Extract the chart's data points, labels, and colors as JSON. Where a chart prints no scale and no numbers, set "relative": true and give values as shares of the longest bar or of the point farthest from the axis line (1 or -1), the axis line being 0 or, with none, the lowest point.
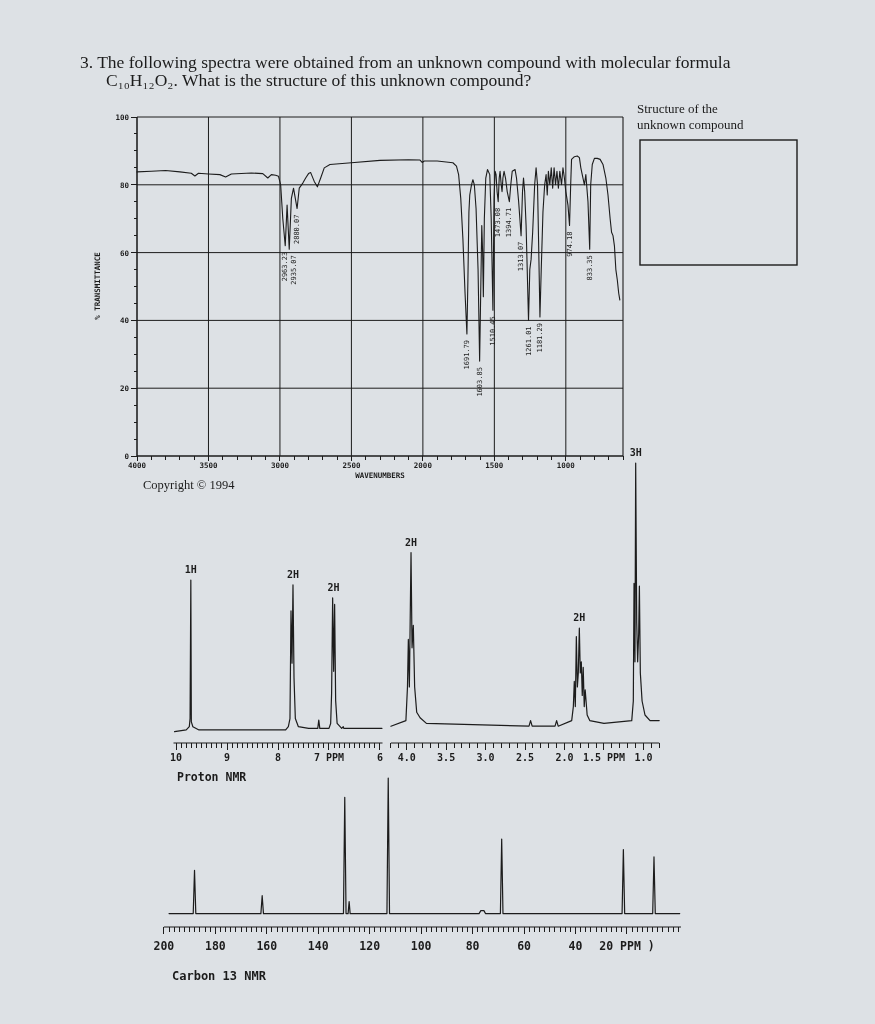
{
  "chart_data": [
    {
      "type": "line",
      "title": "3. The following spectra were obtained from an unknown compound with molecular formula C₁₀H₁₂O₂. What is the structure of this unknown compound?",
      "xlabel": "WAVENUMBERS",
      "ylabel": "% TRANSMITTANCE",
      "x": [
        4000,
        3900,
        3800,
        3700,
        3620,
        3595,
        3570,
        3500,
        3420,
        3380,
        3340,
        3200,
        3120,
        3085,
        3060,
        3030,
        3010,
        2995,
        2980,
        2963,
        2950,
        2935,
        2920,
        2905,
        2880,
        2865,
        2840,
        2820,
        2800,
        2785,
        2760,
        2738,
        2715,
        2690,
        2650,
        2500,
        2300,
        2100,
        2020,
        2005,
        1990,
        1900,
        1790,
        1765,
        1750,
        1735,
        1720,
        1705,
        1692,
        1685,
        1678,
        1672,
        1660,
        1650,
        1640,
        1628,
        1614,
        1603,
        1594,
        1588,
        1582,
        1577,
        1570,
        1560,
        1548,
        1532,
        1522,
        1510,
        1502,
        1495,
        1488,
        1481,
        1473,
        1466,
        1460,
        1452,
        1446,
        1440,
        1432,
        1422,
        1410,
        1395,
        1385,
        1375,
        1355,
        1345,
        1330,
        1313,
        1303,
        1296,
        1288,
        1278,
        1261,
        1252,
        1243,
        1232,
        1218,
        1208,
        1198,
        1190,
        1181,
        1172,
        1160,
        1148,
        1138,
        1130,
        1122,
        1112,
        1102,
        1092,
        1082,
        1072,
        1062,
        1052,
        1042,
        1030,
        1020,
        1010,
        1000,
        985,
        974,
        966,
        960,
        940,
        920,
        905,
        895,
        880,
        870,
        860,
        845,
        833,
        826,
        815,
        800,
        780,
        760,
        740,
        720,
        705,
        690,
        680,
        670,
        660,
        650,
        640,
        630,
        622
      ],
      "series": [
        {
          "color": "#1c1c1c",
          "values": [
            83.8,
            84,
            84.2,
            83.8,
            83.4,
            82.6,
            83.4,
            83.2,
            83,
            82.3,
            83.2,
            83.5,
            83.3,
            82,
            83,
            82.8,
            82.5,
            80,
            70,
            62,
            74,
            61,
            76,
            79,
            73,
            79,
            80.5,
            82,
            83.3,
            83.6,
            81,
            79.4,
            82,
            85,
            86,
            86.5,
            87.2,
            87.4,
            87.3,
            86.6,
            87,
            87,
            86.5,
            85.5,
            83,
            76,
            64,
            48,
            36,
            52,
            72,
            77,
            80,
            81.5,
            80,
            73,
            55,
            28,
            52,
            68,
            60,
            47,
            70,
            82,
            84.5,
            83,
            70,
            43,
            76,
            84,
            83,
            78,
            75,
            82,
            84,
            80,
            78,
            82,
            84,
            82,
            78,
            75,
            80,
            84,
            84.5,
            82,
            75,
            65,
            78,
            82,
            78,
            68,
            40,
            55,
            58,
            66,
            80,
            85,
            80,
            62,
            41,
            55,
            72,
            80,
            83,
            77,
            84,
            80,
            85,
            79,
            85,
            80,
            84,
            79,
            84,
            80,
            85,
            82,
            78,
            74,
            68,
            80,
            87.5,
            88.3,
            88.5,
            88,
            85,
            82,
            80,
            83,
            75,
            61,
            80,
            86,
            87.8,
            87.8,
            87.5,
            86,
            82,
            77,
            70,
            66,
            65,
            62,
            55,
            52,
            48,
            46
          ]
        }
      ],
      "xlim": [
        4000,
        600
      ],
      "xticks": [
        4000,
        {
          "value": 3900,
          "label": null
        },
        {
          "value": 3800,
          "label": null
        },
        {
          "value": 3700,
          "label": null
        },
        {
          "value": 3600,
          "label": null
        },
        3500,
        {
          "value": 3400,
          "label": null
        },
        {
          "value": 3300,
          "label": null
        },
        {
          "value": 3200,
          "label": null
        },
        {
          "value": 3100,
          "label": null
        },
        3000,
        {
          "value": 2900,
          "label": null
        },
        {
          "value": 2800,
          "label": null
        },
        {
          "value": 2700,
          "label": null
        },
        {
          "value": 2600,
          "label": null
        },
        2500,
        {
          "value": 2400,
          "label": null
        },
        {
          "value": 2300,
          "label": null
        },
        {
          "value": 2200,
          "label": null
        },
        {
          "value": 2100,
          "label": null
        },
        2000,
        {
          "value": 1900,
          "label": null
        },
        {
          "value": 1800,
          "label": null
        },
        {
          "value": 1700,
          "label": null
        },
        {
          "value": 1600,
          "label": null
        },
        1500,
        {
          "value": 1400,
          "label": null
        },
        {
          "value": 1300,
          "label": null
        },
        {
          "value": 1200,
          "label": null
        },
        {
          "value": 1100,
          "label": null
        },
        1000,
        {
          "value": 900,
          "label": null
        },
        {
          "value": 800,
          "label": null
        },
        {
          "value": 700,
          "label": null
        },
        {
          "value": 600,
          "label": null
        }
      ],
      "ylim": [
        0,
        100
      ],
      "yticks": [
        0,
        {
          "value": 5,
          "label": null
        },
        {
          "value": 10,
          "label": null
        },
        {
          "value": 15,
          "label": null
        },
        20,
        {
          "value": 25,
          "label": null
        },
        {
          "value": 30,
          "label": null
        },
        {
          "value": 35,
          "label": null
        },
        40,
        {
          "value": 45,
          "label": null
        },
        {
          "value": 50,
          "label": null
        },
        {
          "value": 55,
          "label": null
        },
        60,
        {
          "value": 65,
          "label": null
        },
        {
          "value": 70,
          "label": null
        },
        {
          "value": 75,
          "label": null
        },
        80,
        {
          "value": 85,
          "label": null
        },
        {
          "value": 90,
          "label": null
        },
        {
          "value": 95,
          "label": null
        },
        100
      ],
      "grid": true,
      "annotations": [
        {
          "text": "2963.23",
          "x": 2963.23,
          "y": 62
        },
        {
          "text": "2935.07",
          "x": 2935.07,
          "y": 61
        },
        {
          "text": "2880.07",
          "x": 2880.07,
          "y": 73
        },
        {
          "text": "1691.79",
          "x": 1691.79,
          "y": 36
        },
        {
          "text": "1603.85",
          "x": 1603.85,
          "y": 28
        },
        {
          "text": "1510.45",
          "x": 1510.45,
          "y": 43
        },
        {
          "text": "1473.08",
          "x": 1473.08,
          "y": 75
        },
        {
          "text": "1394.71",
          "x": 1394.71,
          "y": 75
        },
        {
          "text": "1313.07",
          "x": 1313.07,
          "y": 65
        },
        {
          "text": "1261.01",
          "x": 1261.01,
          "y": 40
        },
        {
          "text": "1181.29",
          "x": 1181.29,
          "y": 41
        },
        {
          "text": "974.18",
          "x": 974.18,
          "y": 68
        },
        {
          "text": "833.35",
          "x": 833.35,
          "y": 61
        },
        "Copyright © 1994",
        "Structure of the unknown compound"
      ]
    },
    {
      "type": "line",
      "xlabel": "Proton NMR",
      "relative": true,
      "x": [
        10.03,
        9.8,
        9.74,
        9.725,
        9.71,
        9.7,
        9.67,
        9.55,
        7.85,
        7.797,
        7.765,
        7.745,
        7.725,
        7.706,
        7.686,
        7.66,
        7.6,
        7.4,
        7.22,
        7.2,
        7.18,
        7.0,
        6.967,
        6.948,
        6.928,
        6.908,
        6.889,
        6.869,
        6.84,
        6.75,
        6.72,
        6.71,
        5.96
      ],
      "series": [
        {
          "color": "#1c1c1c",
          "values": [
            0.07,
            0.08,
            0.1,
            0.15,
            1,
            0.13,
            0.1,
            0.08,
            0.08,
            0.1,
            0.15,
            0.81,
            0.49,
            0.97,
            0.4,
            0.15,
            0.1,
            0.09,
            0.09,
            0.14,
            0.09,
            0.09,
            0.12,
            0.31,
            0.89,
            0.44,
            0.85,
            0.26,
            0.12,
            0.09,
            0.1,
            0.09,
            0.09
          ]
        }
      ],
      "xlim": [
        10.05,
        5.95
      ],
      "xticks": [
        10,
        {
          "value": 9.9,
          "label": null
        },
        {
          "value": 9.8,
          "label": null
        },
        {
          "value": 9.7,
          "label": null
        },
        {
          "value": 9.6,
          "label": null
        },
        {
          "value": 9.5,
          "label": null
        },
        {
          "value": 9.4,
          "label": null
        },
        {
          "value": 9.3,
          "label": null
        },
        {
          "value": 9.2,
          "label": null
        },
        {
          "value": 9.1,
          "label": null
        },
        9,
        {
          "value": 8.9,
          "label": null
        },
        {
          "value": 8.8,
          "label": null
        },
        {
          "value": 8.7,
          "label": null
        },
        {
          "value": 8.6,
          "label": null
        },
        {
          "value": 8.5,
          "label": null
        },
        {
          "value": 8.4,
          "label": null
        },
        {
          "value": 8.3,
          "label": null
        },
        {
          "value": 8.2,
          "label": null
        },
        {
          "value": 8.1,
          "label": null
        },
        8,
        {
          "value": 7.9,
          "label": null
        },
        {
          "value": 7.8,
          "label": null
        },
        {
          "value": 7.7,
          "label": null
        },
        {
          "value": 7.6,
          "label": null
        },
        {
          "value": 7.5,
          "label": null
        },
        {
          "value": 7.4,
          "label": null
        },
        {
          "value": 7.3,
          "label": null
        },
        {
          "value": 7.2,
          "label": null
        },
        {
          "value": 7.1,
          "label": null
        },
        {
          "value": 7,
          "label": "7 PPM"
        },
        {
          "value": 6.9,
          "label": null
        },
        {
          "value": 6.8,
          "label": null
        },
        {
          "value": 6.7,
          "label": null
        },
        {
          "value": 6.6,
          "label": null
        },
        {
          "value": 6.5,
          "label": null
        },
        {
          "value": 6.4,
          "label": null
        },
        {
          "value": 6.3,
          "label": null
        },
        {
          "value": 6.2,
          "label": null
        },
        {
          "value": 6.1,
          "label": null
        },
        6
      ],
      "annotations": [
        {
          "text": "1H",
          "x": 9.71,
          "y": 1
        },
        {
          "text": "2H",
          "x": 7.706,
          "y": 0.97
        },
        {
          "text": "2H",
          "x": 6.91,
          "y": 0.89
        }
      ]
    },
    {
      "type": "line",
      "relative": true,
      "x": [
        4.2,
        4.01,
        3.99,
        3.979,
        3.966,
        3.945,
        3.932,
        3.916,
        3.899,
        3.873,
        3.83,
        3.75,
        2.45,
        2.43,
        2.41,
        2.12,
        2.1,
        2.08,
        1.909,
        1.888,
        1.876,
        1.863,
        1.85,
        1.837,
        1.825,
        1.812,
        1.8,
        1.787,
        1.775,
        1.763,
        1.75,
        1.738,
        1.713,
        1.68,
        1.5,
        1.148,
        1.128,
        1.119,
        1.107,
        1.098,
        1.085,
        1.073,
        1.06,
        1.051,
        1.039,
        1.017,
        0.98,
        0.916,
        0.8
      ],
      "series": [
        {
          "color": "#1c1c1c",
          "values": [
            0.06,
            0.08,
            0.2,
            0.37,
            0.2,
            0.68,
            0.34,
            0.42,
            0.2,
            0.11,
            0.09,
            0.07,
            0.06,
            0.08,
            0.06,
            0.06,
            0.08,
            0.06,
            0.08,
            0.13,
            0.22,
            0.13,
            0.38,
            0.2,
            0.25,
            0.41,
            0.25,
            0.29,
            0.17,
            0.27,
            0.13,
            0.19,
            0.1,
            0.08,
            0.07,
            0.08,
            0.15,
            0.57,
            0.29,
            1,
            0.43,
            0.29,
            0.39,
            0.56,
            0.25,
            0.15,
            0.1,
            0.08,
            0.08
          ]
        }
      ],
      "xlim": [
        4.2,
        0.8
      ],
      "xticks": [
        {
          "value": 4.2,
          "label": null
        },
        {
          "value": 4.1,
          "label": null
        },
        {
          "value": 4,
          "label": "4.0"
        },
        {
          "value": 3.9,
          "label": null
        },
        {
          "value": 3.8,
          "label": null
        },
        {
          "value": 3.7,
          "label": null
        },
        {
          "value": 3.6,
          "label": null
        },
        3.5,
        {
          "value": 3.4,
          "label": null
        },
        {
          "value": 3.3,
          "label": null
        },
        {
          "value": 3.2,
          "label": null
        },
        {
          "value": 3.1,
          "label": null
        },
        {
          "value": 3,
          "label": "3.0"
        },
        {
          "value": 2.9,
          "label": null
        },
        {
          "value": 2.8,
          "label": null
        },
        {
          "value": 2.7,
          "label": null
        },
        {
          "value": 2.6,
          "label": null
        },
        2.5,
        {
          "value": 2.4,
          "label": null
        },
        {
          "value": 2.3,
          "label": null
        },
        {
          "value": 2.2,
          "label": null
        },
        {
          "value": 2.1,
          "label": null
        },
        {
          "value": 2,
          "label": "2.0"
        },
        {
          "value": 1.9,
          "label": null
        },
        {
          "value": 1.8,
          "label": null
        },
        {
          "value": 1.7,
          "label": null
        },
        {
          "value": 1.6,
          "label": null
        },
        {
          "value": 1.5,
          "label": "1.5 PPM"
        },
        {
          "value": 1.4,
          "label": null
        },
        {
          "value": 1.3,
          "label": null
        },
        {
          "value": 1.2,
          "label": null
        },
        {
          "value": 1.1,
          "label": null
        },
        {
          "value": 1,
          "label": "1.0"
        },
        {
          "value": 0.9,
          "label": null
        },
        {
          "value": 0.8,
          "label": null
        }
      ],
      "annotations": [
        {
          "text": "2H",
          "x": 3.945,
          "y": 0.68
        },
        {
          "text": "2H",
          "x": 1.812,
          "y": 0.41
        },
        {
          "text": "3H",
          "x": 1.098,
          "y": 1
        }
      ]
    },
    {
      "type": "line",
      "xlabel": "Carbon 13 NMR",
      "relative": true,
      "x": [
        198,
        188.6,
        188.1,
        187.6,
        162.3,
        161.8,
        161.3,
        130.2,
        129.7,
        129.2,
        128.4,
        128,
        127.6,
        113.3,
        112.8,
        112.3,
        77.5,
        76.8,
        75.6,
        75,
        69.2,
        68.7,
        68.2,
        21.9,
        21.4,
        20.9,
        10,
        9.5,
        9,
        -0.5
      ],
      "series": [
        {
          "color": "#1c1c1c",
          "values": [
            0.09,
            0.09,
            0.38,
            0.09,
            0.09,
            0.21,
            0.09,
            0.09,
            0.87,
            0.09,
            0.09,
            0.17,
            0.09,
            0.09,
            1,
            0.09,
            0.09,
            0.11,
            0.11,
            0.09,
            0.09,
            0.59,
            0.09,
            0.09,
            0.52,
            0.09,
            0.09,
            0.47,
            0.09,
            0.09
          ]
        }
      ],
      "xlim": [
        200,
        -1
      ],
      "xticks": [
        200,
        {
          "value": 198,
          "label": null
        },
        {
          "value": 196,
          "label": null
        },
        {
          "value": 194,
          "label": null
        },
        {
          "value": 192,
          "label": null
        },
        {
          "value": 190,
          "label": null
        },
        {
          "value": 188,
          "label": null
        },
        {
          "value": 186,
          "label": null
        },
        {
          "value": 184,
          "label": null
        },
        {
          "value": 182,
          "label": null
        },
        180,
        {
          "value": 178,
          "label": null
        },
        {
          "value": 176,
          "label": null
        },
        {
          "value": 174,
          "label": null
        },
        {
          "value": 172,
          "label": null
        },
        {
          "value": 170,
          "label": null
        },
        {
          "value": 168,
          "label": null
        },
        {
          "value": 166,
          "label": null
        },
        {
          "value": 164,
          "label": null
        },
        {
          "value": 162,
          "label": null
        },
        160,
        {
          "value": 158,
          "label": null
        },
        {
          "value": 156,
          "label": null
        },
        {
          "value": 154,
          "label": null
        },
        {
          "value": 152,
          "label": null
        },
        {
          "value": 150,
          "label": null
        },
        {
          "value": 148,
          "label": null
        },
        {
          "value": 146,
          "label": null
        },
        {
          "value": 144,
          "label": null
        },
        {
          "value": 142,
          "label": null
        },
        140,
        {
          "value": 138,
          "label": null
        },
        {
          "value": 136,
          "label": null
        },
        {
          "value": 134,
          "label": null
        },
        {
          "value": 132,
          "label": null
        },
        {
          "value": 130,
          "label": null
        },
        {
          "value": 128,
          "label": null
        },
        {
          "value": 126,
          "label": null
        },
        {
          "value": 124,
          "label": null
        },
        {
          "value": 122,
          "label": null
        },
        120,
        {
          "value": 118,
          "label": null
        },
        {
          "value": 116,
          "label": null
        },
        {
          "value": 114,
          "label": null
        },
        {
          "value": 112,
          "label": null
        },
        {
          "value": 110,
          "label": null
        },
        {
          "value": 108,
          "label": null
        },
        {
          "value": 106,
          "label": null
        },
        {
          "value": 104,
          "label": null
        },
        {
          "value": 102,
          "label": null
        },
        100,
        {
          "value": 98,
          "label": null
        },
        {
          "value": 96,
          "label": null
        },
        {
          "value": 94,
          "label": null
        },
        {
          "value": 92,
          "label": null
        },
        {
          "value": 90,
          "label": null
        },
        {
          "value": 88,
          "label": null
        },
        {
          "value": 86,
          "label": null
        },
        {
          "value": 84,
          "label": null
        },
        {
          "value": 82,
          "label": null
        },
        80,
        {
          "value": 78,
          "label": null
        },
        {
          "value": 76,
          "label": null
        },
        {
          "value": 74,
          "label": null
        },
        {
          "value": 72,
          "label": null
        },
        {
          "value": 70,
          "label": null
        },
        {
          "value": 68,
          "label": null
        },
        {
          "value": 66,
          "label": null
        },
        {
          "value": 64,
          "label": null
        },
        {
          "value": 62,
          "label": null
        },
        60,
        {
          "value": 58,
          "label": null
        },
        {
          "value": 56,
          "label": null
        },
        {
          "value": 54,
          "label": null
        },
        {
          "value": 52,
          "label": null
        },
        {
          "value": 50,
          "label": null
        },
        {
          "value": 48,
          "label": null
        },
        {
          "value": 46,
          "label": null
        },
        {
          "value": 44,
          "label": null
        },
        {
          "value": 42,
          "label": null
        },
        40,
        {
          "value": 38,
          "label": null
        },
        {
          "value": 36,
          "label": null
        },
        {
          "value": 34,
          "label": null
        },
        {
          "value": 32,
          "label": null
        },
        {
          "value": 30,
          "label": null
        },
        {
          "value": 28,
          "label": null
        },
        {
          "value": 26,
          "label": null
        },
        {
          "value": 24,
          "label": null
        },
        {
          "value": 22,
          "label": null
        },
        {
          "value": 20,
          "label": "20 PPM )"
        },
        {
          "value": 18,
          "label": null
        },
        {
          "value": 16,
          "label": null
        },
        {
          "value": 14,
          "label": null
        },
        {
          "value": 12,
          "label": null
        },
        {
          "value": 10,
          "label": null
        },
        {
          "value": 8,
          "label": null
        },
        {
          "value": 6,
          "label": null
        },
        {
          "value": 4,
          "label": null
        },
        {
          "value": 2,
          "label": null
        },
        {
          "value": 0,
          "label": null
        }
      ]
    }
  ]
}
